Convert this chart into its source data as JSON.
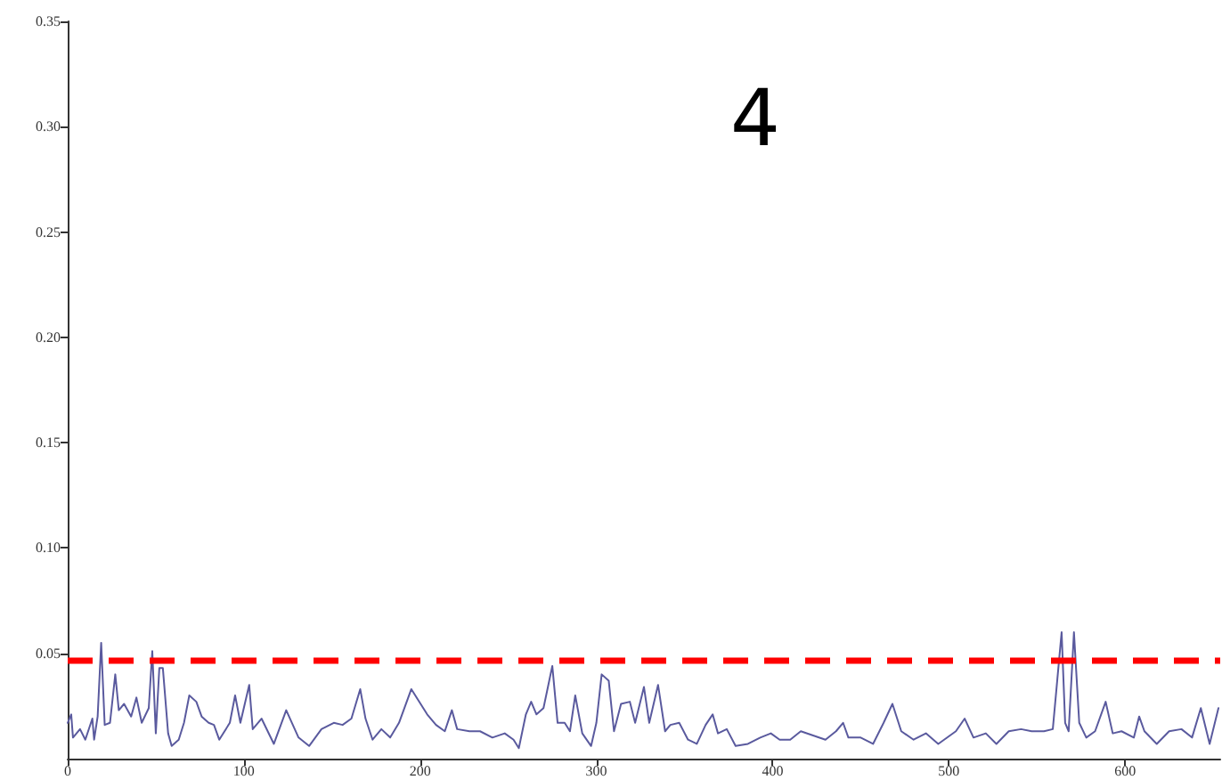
{
  "chart_data": {
    "type": "line",
    "title": "4",
    "x": [
      0,
      2,
      3,
      7,
      10,
      14,
      15,
      17,
      19,
      21,
      24,
      27,
      29,
      32,
      36,
      39,
      42,
      46,
      48,
      50,
      52,
      54,
      57,
      59,
      63,
      66,
      69,
      73,
      76,
      80,
      83,
      86,
      92,
      95,
      98,
      103,
      105,
      110,
      117,
      124,
      131,
      137,
      144,
      151,
      156,
      161,
      166,
      169,
      173,
      178,
      183,
      188,
      195,
      204,
      209,
      214,
      218,
      221,
      228,
      234,
      241,
      248,
      253,
      256,
      260,
      263,
      266,
      270,
      275,
      278,
      282,
      285,
      288,
      292,
      297,
      300,
      303,
      307,
      310,
      314,
      319,
      322,
      327,
      330,
      335,
      339,
      342,
      347,
      352,
      357,
      362,
      366,
      369,
      374,
      379,
      386,
      393,
      399,
      404,
      410,
      416,
      430,
      436,
      440,
      443,
      450,
      457,
      463,
      468,
      473,
      480,
      487,
      494,
      504,
      509,
      514,
      521,
      527,
      534,
      541,
      547,
      554,
      559,
      564,
      566,
      568,
      571,
      574,
      578,
      583,
      589,
      593,
      598,
      605,
      608,
      611,
      618,
      625,
      632,
      638,
      643,
      648,
      653
    ],
    "series": [
      {
        "color": "#5a5a9e",
        "values": [
          0.017,
          0.021,
          0.01,
          0.014,
          0.009,
          0.019,
          0.009,
          0.02,
          0.055,
          0.016,
          0.017,
          0.04,
          0.023,
          0.026,
          0.02,
          0.029,
          0.017,
          0.024,
          0.051,
          0.012,
          0.043,
          0.043,
          0.012,
          0.006,
          0.009,
          0.017,
          0.03,
          0.027,
          0.02,
          0.017,
          0.016,
          0.009,
          0.017,
          0.03,
          0.017,
          0.035,
          0.014,
          0.019,
          0.007,
          0.023,
          0.01,
          0.006,
          0.014,
          0.017,
          0.016,
          0.019,
          0.033,
          0.019,
          0.009,
          0.014,
          0.01,
          0.017,
          0.033,
          0.021,
          0.016,
          0.013,
          0.023,
          0.014,
          0.013,
          0.013,
          0.01,
          0.012,
          0.009,
          0.005,
          0.021,
          0.027,
          0.021,
          0.024,
          0.044,
          0.017,
          0.017,
          0.013,
          0.03,
          0.012,
          0.006,
          0.017,
          0.04,
          0.037,
          0.013,
          0.026,
          0.027,
          0.017,
          0.034,
          0.017,
          0.035,
          0.013,
          0.016,
          0.017,
          0.009,
          0.007,
          0.016,
          0.021,
          0.012,
          0.014,
          0.006,
          0.007,
          0.01,
          0.012,
          0.009,
          0.009,
          0.013,
          0.009,
          0.013,
          0.017,
          0.01,
          0.01,
          0.007,
          0.017,
          0.026,
          0.013,
          0.009,
          0.012,
          0.007,
          0.013,
          0.019,
          0.01,
          0.012,
          0.007,
          0.013,
          0.014,
          0.013,
          0.013,
          0.014,
          0.06,
          0.017,
          0.013,
          0.06,
          0.017,
          0.01,
          0.013,
          0.027,
          0.012,
          0.013,
          0.01,
          0.02,
          0.013,
          0.007,
          0.013,
          0.014,
          0.01,
          0.024,
          0.007,
          0.024
        ]
      }
    ],
    "xlim": [
      0,
      654
    ],
    "xticks": [
      0,
      100,
      200,
      300,
      400,
      500,
      600
    ],
    "ylim": [
      0,
      0.35
    ],
    "yticks": [
      0.05,
      {
        "value": 0.1,
        "label": "0.10"
      },
      0.15,
      {
        "value": 0.2,
        "label": "0.20"
      },
      0.25,
      {
        "value": 0.3,
        "label": "0.30"
      },
      0.35
    ],
    "ref_lines": [
      {
        "axis": "y",
        "value": 0.047,
        "color": "#ff0000",
        "line_style": "dashed"
      }
    ],
    "grid": false,
    "marker": "none",
    "line_style": "solid"
  }
}
